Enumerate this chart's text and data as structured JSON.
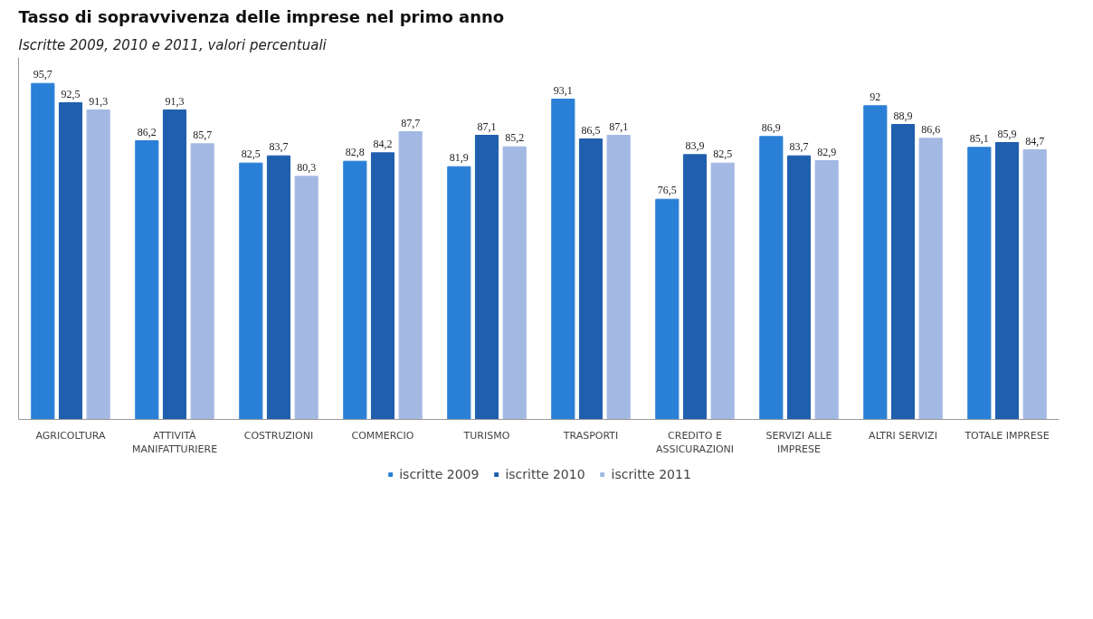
{
  "chart_data": {
    "type": "bar",
    "title": "Tasso di sopravvivenza delle imprese nel primo anno",
    "subtitle": "Iscritte 2009, 2010 e 2011, valori percentuali",
    "categories": [
      "AGRICOLTURA",
      "ATTIVITÀ MANIFATTURIERE",
      "COSTRUZIONI",
      "COMMERCIO",
      "TURISMO",
      "TRASPORTI",
      "CREDITO E ASSICURAZIONI",
      "SERVIZI ALLE IMPRESE",
      "ALTRI SERVIZI",
      "TOTALE IMPRESE"
    ],
    "ylim": [
      40,
      100
    ],
    "tick_labels": "x",
    "grid": false,
    "legend": "bottom",
    "series": [
      {
        "name": "iscritte 2009",
        "color": "#2a7fd6",
        "values": [
          95.7,
          86.2,
          82.5,
          82.8,
          81.9,
          93.1,
          76.5,
          86.9,
          92,
          85.1
        ],
        "value_labels": [
          "95,7",
          "86,2",
          "82,5",
          "82,8",
          "81,9",
          "93,1",
          "76,5",
          "86,9",
          "92",
          "85,1"
        ]
      },
      {
        "name": "iscritte 2010",
        "color": "#1f5fae",
        "values": [
          92.5,
          91.3,
          83.7,
          84.2,
          87.1,
          86.5,
          83.9,
          83.7,
          88.9,
          85.9
        ],
        "value_labels": [
          "92,5",
          "91,3",
          "83,7",
          "84,2",
          "87,1",
          "86,5",
          "83,9",
          "83,7",
          "88,9",
          "85,9"
        ]
      },
      {
        "name": "iscritte 2011",
        "color": "#a3b9e3",
        "values": [
          91.3,
          85.7,
          80.3,
          87.7,
          85.2,
          87.1,
          82.5,
          82.9,
          86.6,
          84.7
        ],
        "value_labels": [
          "91,3",
          "85,7",
          "80,3",
          "87,7",
          "85,2",
          "87,1",
          "82,5",
          "82,9",
          "86,6",
          "84,7"
        ]
      }
    ]
  }
}
